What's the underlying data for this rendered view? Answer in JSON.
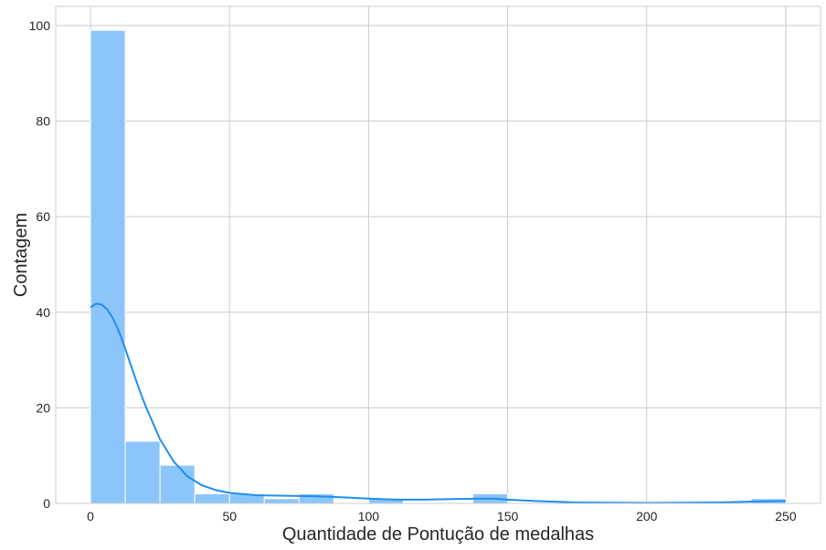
{
  "chart_data": {
    "type": "bar",
    "subtype": "histogram",
    "title": "",
    "xlabel": "Quantidade de Pontução de medalhas",
    "ylabel": "Contagem",
    "xlim": [
      -12.5,
      262.5
    ],
    "ylim": [
      0,
      104
    ],
    "x_ticks": [
      0,
      50,
      100,
      150,
      200,
      250
    ],
    "y_ticks": [
      0,
      20,
      40,
      60,
      80,
      100
    ],
    "grid": true,
    "bar_color": "#8cc5fb",
    "line_color": "#1e8ff0",
    "bins": [
      {
        "x0": 0,
        "x1": 12.5,
        "count": 99
      },
      {
        "x0": 12.5,
        "x1": 25,
        "count": 13
      },
      {
        "x0": 25,
        "x1": 37.5,
        "count": 8
      },
      {
        "x0": 37.5,
        "x1": 50,
        "count": 2
      },
      {
        "x0": 50,
        "x1": 62.5,
        "count": 2
      },
      {
        "x0": 62.5,
        "x1": 75,
        "count": 1
      },
      {
        "x0": 75,
        "x1": 87.5,
        "count": 2
      },
      {
        "x0": 87.5,
        "x1": 100,
        "count": 0
      },
      {
        "x0": 100,
        "x1": 112.5,
        "count": 1
      },
      {
        "x0": 112.5,
        "x1": 125,
        "count": 0
      },
      {
        "x0": 125,
        "x1": 137.5,
        "count": 0
      },
      {
        "x0": 137.5,
        "x1": 150,
        "count": 2
      },
      {
        "x0": 150,
        "x1": 162.5,
        "count": 0
      },
      {
        "x0": 162.5,
        "x1": 175,
        "count": 0
      },
      {
        "x0": 175,
        "x1": 187.5,
        "count": 0
      },
      {
        "x0": 187.5,
        "x1": 200,
        "count": 0
      },
      {
        "x0": 200,
        "x1": 212.5,
        "count": 0
      },
      {
        "x0": 212.5,
        "x1": 225,
        "count": 0
      },
      {
        "x0": 225,
        "x1": 237.5,
        "count": 0
      },
      {
        "x0": 237.5,
        "x1": 250,
        "count": 1
      }
    ],
    "kde": {
      "x": [
        0,
        2,
        4,
        6,
        8,
        10,
        12,
        14,
        16,
        18,
        20,
        25,
        30,
        35,
        40,
        45,
        50,
        60,
        70,
        80,
        90,
        100,
        110,
        120,
        130,
        140,
        145,
        150,
        160,
        175,
        200,
        225,
        240,
        250
      ],
      "y": [
        41,
        41.8,
        41.6,
        40.6,
        38.8,
        36.3,
        33.2,
        29.8,
        26.4,
        23.1,
        20.1,
        13.4,
        8.7,
        5.6,
        3.8,
        2.8,
        2.2,
        1.7,
        1.6,
        1.5,
        1.3,
        1.0,
        0.8,
        0.8,
        0.9,
        1.0,
        1.0,
        0.8,
        0.5,
        0.2,
        0.1,
        0.2,
        0.4,
        0.5
      ]
    }
  }
}
